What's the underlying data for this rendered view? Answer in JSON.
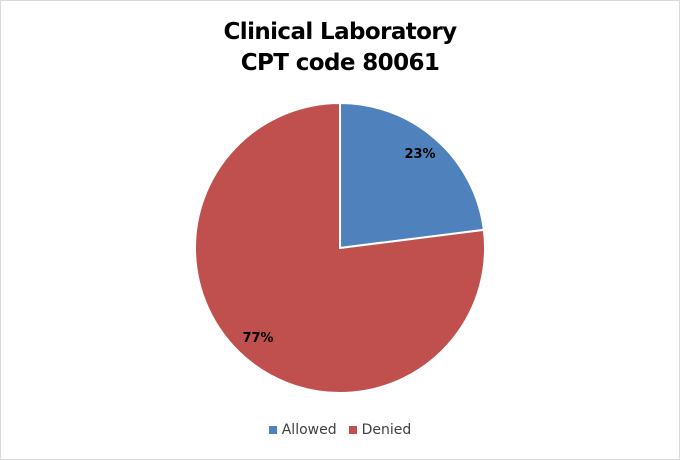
{
  "chart_data": {
    "type": "pie",
    "title": "Clinical Laboratory\nCPT code 80061",
    "title_lines": [
      "Clinical Laboratory",
      "CPT code 80061"
    ],
    "categories": [
      "Allowed",
      "Denied"
    ],
    "values": [
      23,
      77
    ],
    "data_labels": [
      "23%",
      "77%"
    ],
    "colors": [
      "#4f81bd",
      "#c0504d"
    ],
    "start_angle": "12 o'clock, clockwise",
    "legend": "bottom"
  }
}
